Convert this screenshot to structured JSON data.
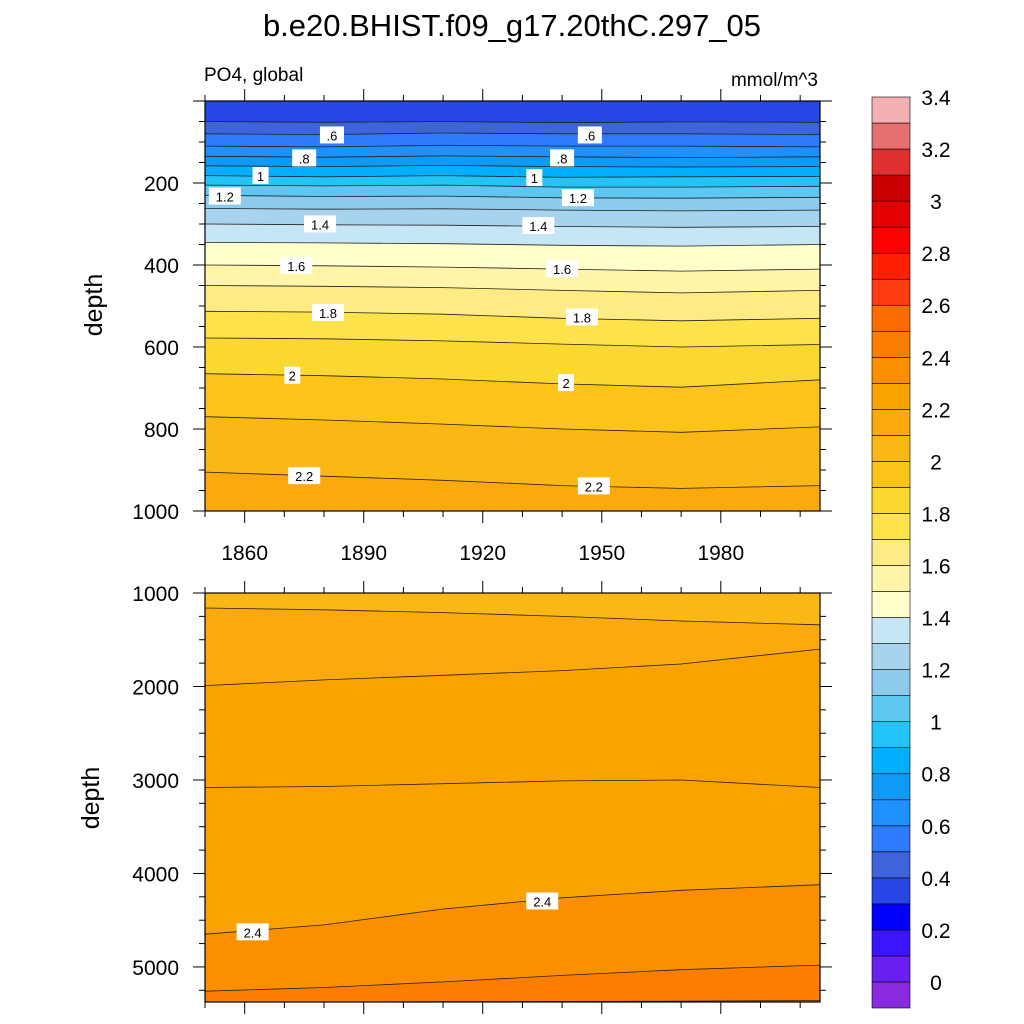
{
  "chart_data": [
    {
      "type": "contour",
      "title": "b.e20.BHIST.f09_g17.20thC.297_05",
      "left_string": "PO4, global",
      "right_string": "mmol/m^3",
      "ylabel": "depth",
      "xlabel": "",
      "xlim": [
        1850,
        2005
      ],
      "x_ticks": [
        "1860",
        "1890",
        "1920",
        "1950",
        "1980"
      ],
      "ylim": [
        0,
        1000
      ],
      "y_reversed": true,
      "y_ticks": [
        "200",
        "400",
        "600",
        "800",
        "1000"
      ],
      "contour_years": [
        1850,
        1880,
        1910,
        1940,
        1970,
        2005
      ],
      "contours": [
        {
          "level": 0.5,
          "depths": [
            50,
            52,
            50,
            53,
            51,
            52
          ]
        },
        {
          "level": 0.6,
          "depths": [
            80,
            82,
            78,
            80,
            80,
            82
          ]
        },
        {
          "level": 0.7,
          "depths": [
            110,
            112,
            108,
            110,
            110,
            112
          ]
        },
        {
          "level": 0.8,
          "depths": [
            135,
            137,
            134,
            136,
            138,
            136
          ]
        },
        {
          "level": 0.9,
          "depths": [
            158,
            160,
            157,
            160,
            161,
            160
          ]
        },
        {
          "level": 1.0,
          "depths": [
            182,
            185,
            182,
            186,
            185,
            184
          ]
        },
        {
          "level": 1.1,
          "depths": [
            205,
            207,
            205,
            210,
            210,
            208
          ]
        },
        {
          "level": 1.2,
          "depths": [
            230,
            233,
            232,
            236,
            237,
            235
          ]
        },
        {
          "level": 1.3,
          "depths": [
            262,
            264,
            263,
            266,
            268,
            266
          ]
        },
        {
          "level": 1.4,
          "depths": [
            300,
            302,
            303,
            306,
            308,
            306
          ]
        },
        {
          "level": 1.5,
          "depths": [
            345,
            346,
            348,
            352,
            354,
            350
          ]
        },
        {
          "level": 1.6,
          "depths": [
            400,
            402,
            405,
            410,
            415,
            410
          ]
        },
        {
          "level": 1.7,
          "depths": [
            450,
            452,
            455,
            462,
            468,
            462
          ]
        },
        {
          "level": 1.8,
          "depths": [
            513,
            515,
            520,
            530,
            536,
            530
          ]
        },
        {
          "level": 1.9,
          "depths": [
            578,
            580,
            585,
            593,
            600,
            594
          ]
        },
        {
          "level": 2.0,
          "depths": [
            665,
            670,
            678,
            690,
            698,
            680
          ]
        },
        {
          "level": 2.1,
          "depths": [
            770,
            778,
            788,
            800,
            808,
            795
          ]
        },
        {
          "level": 2.2,
          "depths": [
            905,
            915,
            925,
            938,
            945,
            938
          ]
        }
      ],
      "contour_labels": [
        {
          "text": ".6",
          "x": 1882,
          "depth": 84
        },
        {
          "text": ".6",
          "x": 1947,
          "depth": 84
        },
        {
          "text": ".8",
          "x": 1875,
          "depth": 140
        },
        {
          "text": ".8",
          "x": 1940,
          "depth": 140
        },
        {
          "text": "1",
          "x": 1864,
          "depth": 183
        },
        {
          "text": "1",
          "x": 1933,
          "depth": 188
        },
        {
          "text": "1.2",
          "x": 1855,
          "depth": 233
        },
        {
          "text": "1.2",
          "x": 1944,
          "depth": 237
        },
        {
          "text": "1.4",
          "x": 1879,
          "depth": 301
        },
        {
          "text": "1.4",
          "x": 1934,
          "depth": 305
        },
        {
          "text": "1.6",
          "x": 1873,
          "depth": 402
        },
        {
          "text": "1.6",
          "x": 1940,
          "depth": 410
        },
        {
          "text": "1.8",
          "x": 1881,
          "depth": 517
        },
        {
          "text": "1.8",
          "x": 1945,
          "depth": 528
        },
        {
          "text": "2",
          "x": 1872,
          "depth": 670
        },
        {
          "text": "2",
          "x": 1941,
          "depth": 688
        },
        {
          "text": "2.2",
          "x": 1875,
          "depth": 915
        },
        {
          "text": "2.2",
          "x": 1948,
          "depth": 940
        }
      ]
    },
    {
      "type": "contour",
      "title": "",
      "ylabel": "depth",
      "xlabel": "",
      "xlim": [
        1850,
        2005
      ],
      "x_ticks": [],
      "ylim": [
        1000,
        5375
      ],
      "y_reversed": true,
      "y_ticks": [
        "1000",
        "2000",
        "3000",
        "4000",
        "5000"
      ],
      "contour_years": [
        1850,
        1880,
        1910,
        1940,
        1970,
        2005
      ],
      "contours": [
        {
          "level": 2.2,
          "depths": [
            1160,
            1180,
            1210,
            1250,
            1300,
            1340
          ]
        },
        {
          "level": 2.3,
          "depths": [
            1990,
            1930,
            1880,
            1830,
            1760,
            1600
          ]
        },
        {
          "level": 2.3,
          "depths": [
            3080,
            3070,
            3040,
            3010,
            3000,
            3080
          ]
        },
        {
          "level": 2.4,
          "depths": [
            4650,
            4550,
            4380,
            4260,
            4180,
            4120
          ]
        },
        {
          "level": 2.5,
          "depths": [
            5260,
            5220,
            5160,
            5090,
            5030,
            4980
          ]
        },
        {
          "level": 2.6,
          "depths": [
            5375,
            5375,
            5372,
            5370,
            5365,
            5360
          ]
        }
      ],
      "contour_labels": [
        {
          "text": "2.4",
          "x": 1862,
          "depth": 4630
        },
        {
          "text": "2.4",
          "x": 1935,
          "depth": 4300
        }
      ]
    }
  ],
  "colorbar": {
    "labels": [
      "3.4",
      "3.2",
      "3",
      "2.8",
      "2.6",
      "2.4",
      "2.2",
      "2",
      "1.8",
      "1.6",
      "1.4",
      "1.2",
      "1",
      "0.8",
      "0.6",
      "0.4",
      "0.2",
      "0"
    ],
    "levels": [
      0,
      0.1,
      0.2,
      0.3,
      0.4,
      0.5,
      0.6,
      0.7,
      0.8,
      0.9,
      1.0,
      1.1,
      1.2,
      1.3,
      1.4,
      1.5,
      1.6,
      1.7,
      1.8,
      1.9,
      2.0,
      2.1,
      2.2,
      2.3,
      2.4,
      2.5,
      2.6,
      2.7,
      2.8,
      2.9,
      3.0,
      3.1,
      3.2,
      3.3,
      3.4,
      3.5
    ],
    "colors": [
      "#8a2be2",
      "#6a20f0",
      "#3c14ff",
      "#0000ff",
      "#2646e6",
      "#3e64dc",
      "#2d7cff",
      "#1e90ff",
      "#109af5",
      "#00afff",
      "#22c4f8",
      "#5cc8f2",
      "#8ccbee",
      "#a7d3ee",
      "#c7e6f5",
      "#ffffcc",
      "#fff4a8",
      "#fdeb84",
      "#fde24a",
      "#fad830",
      "#fcc319",
      "#fbb714",
      "#fba90c",
      "#f9a200",
      "#fb8f00",
      "#fc7e00",
      "#fd6c00",
      "#fe3d10",
      "#ff2000",
      "#ff0000",
      "#e50000",
      "#cc0000",
      "#e03030",
      "#e67070",
      "#f5b0b4"
    ]
  }
}
